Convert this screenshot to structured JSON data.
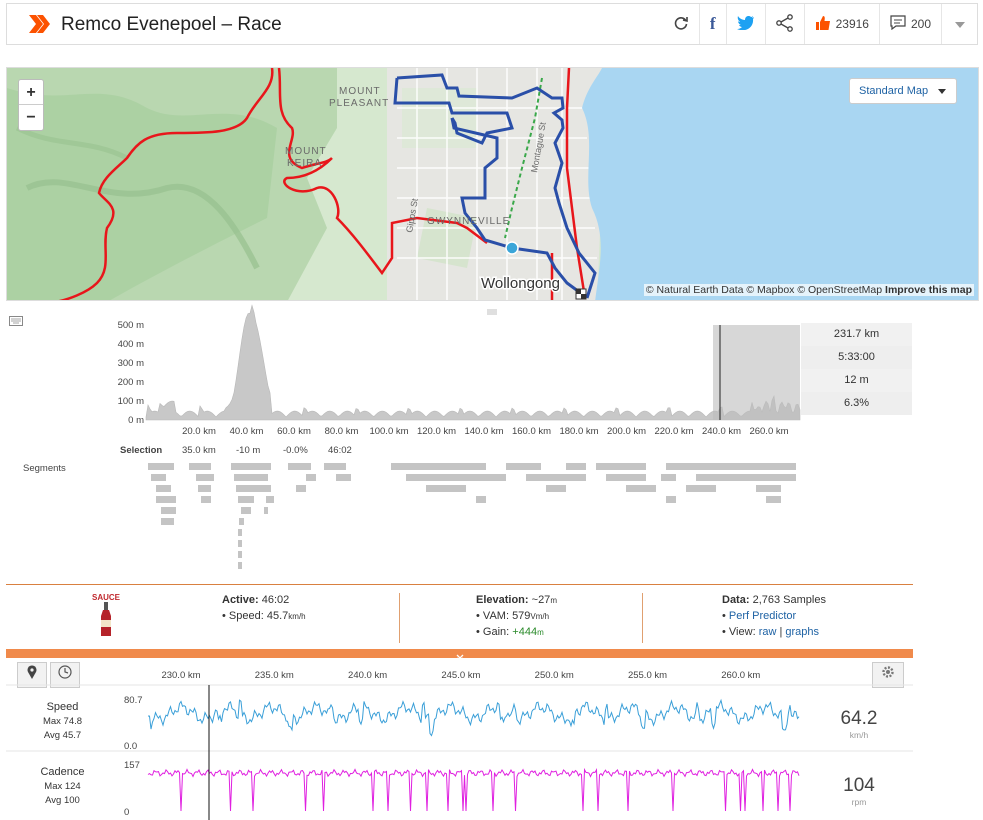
{
  "header": {
    "title": "Remco Evenepoel – Race",
    "kudos_count": "23916",
    "comment_count": "200"
  },
  "map": {
    "style_select": "Standard Map",
    "zoom_in": "+",
    "zoom_out": "−",
    "labels": {
      "mount_pleasant_1": "MOUNT",
      "mount_pleasant_2": "PLEASANT",
      "mount_keira_1": "MOUNT",
      "mount_keira_2": "KEIRA",
      "gwynneville": "GWYNNEVILLE",
      "wollongong": "Wollongong",
      "montague_st": "Montague St",
      "gipps_st": "Gipps St"
    },
    "attribution": "© Natural Earth Data © Mapbox © OpenStreetMap",
    "attribution_link": "Improve this map"
  },
  "elevation": {
    "y_ticks": [
      "500 m",
      "400 m",
      "300 m",
      "200 m",
      "100 m",
      "0 m"
    ],
    "x_ticks": [
      "20.0 km",
      "40.0 km",
      "60.0 km",
      "80.0 km",
      "100.0 km",
      "120.0 km",
      "140.0 km",
      "160.0 km",
      "180.0 km",
      "200.0 km",
      "220.0 km",
      "240.0 km",
      "260.0 km"
    ],
    "selection_label": "Selection",
    "selection_values": [
      "35.0 km",
      "-10 m",
      "-0.0%",
      "46:02"
    ],
    "stats": [
      "231.7 km",
      "5:33:00",
      "12 m",
      "6.3%"
    ],
    "segments_label": "Segments"
  },
  "info": {
    "sauce_label": "SAUCE",
    "active_label": "Active:",
    "active_value": "46:02",
    "speed_label": "Speed:",
    "speed_value": "45.7",
    "speed_unit": "km/h",
    "elevation_label": "Elevation:",
    "elevation_value": "~27",
    "elevation_unit": "m",
    "vam_label": "VAM:",
    "vam_value": "579",
    "vam_unit": "Vm/h",
    "gain_label": "Gain:",
    "gain_value": "+444",
    "gain_unit": "m",
    "data_label": "Data:",
    "data_value": "2,763 Samples",
    "perf_predictor": "Perf Predictor",
    "view_label": "View:",
    "view_raw": "raw",
    "view_sep": "|",
    "view_graphs": "graphs"
  },
  "graphs": {
    "x_ticks": [
      "230.0 km",
      "235.0 km",
      "240.0 km",
      "245.0 km",
      "250.0 km",
      "255.0 km",
      "260.0 km"
    ],
    "speed": {
      "name": "Speed",
      "max": "Max 74.8",
      "avg": "Avg 45.7",
      "axis_top": "80.7",
      "axis_bottom": "0.0",
      "current": "64.2",
      "unit": "km/h",
      "color": "#3a9fd8"
    },
    "cadence": {
      "name": "Cadence",
      "max": "Max 124",
      "avg": "Avg 100",
      "axis_top": "157",
      "axis_bottom": "0",
      "current": "104",
      "unit": "rpm",
      "color": "#e020e0"
    }
  },
  "colors": {
    "strava_orange": "#fc5200",
    "route_blue": "#2a4fa8",
    "route_red": "#e8161b",
    "water": "#a9d6f2",
    "link_blue": "#1e62a4"
  }
}
